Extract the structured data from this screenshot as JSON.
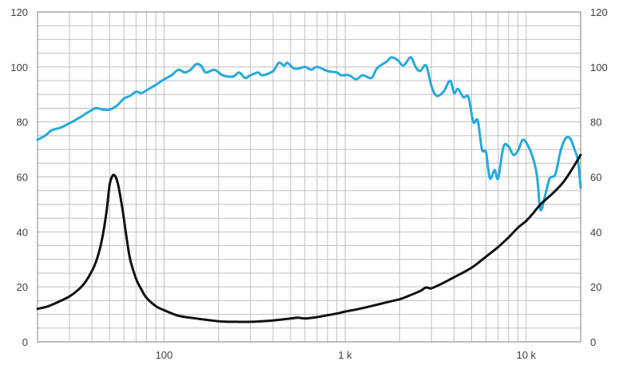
{
  "chart_data": {
    "type": "line",
    "x_scale": "log",
    "xlim": [
      20,
      20000
    ],
    "ylim": [
      0,
      120
    ],
    "grid": true,
    "legend": "none",
    "y_ticks": [
      0,
      20,
      40,
      60,
      80,
      100,
      120
    ],
    "y_tick_labels": [
      "0",
      "20",
      "40",
      "60",
      "80",
      "100",
      "120"
    ],
    "x_tick_labels": [
      {
        "value": 100,
        "label": "100"
      },
      {
        "value": 1000,
        "label": "1 k"
      },
      {
        "value": 10000,
        "label": "10 k"
      }
    ],
    "colors": {
      "frequency_response": "#27a9dc",
      "impedance": "#111111",
      "grid": "#bfbfbf",
      "axis": "#7f7f7f"
    },
    "series": [
      {
        "color": "#27a9dc",
        "points": [
          [
            20,
            73.5
          ],
          [
            22,
            75
          ],
          [
            24,
            77
          ],
          [
            27,
            78
          ],
          [
            30,
            79.5
          ],
          [
            34,
            81.5
          ],
          [
            38,
            83.5
          ],
          [
            42,
            85
          ],
          [
            46,
            84.5
          ],
          [
            50,
            84.5
          ],
          [
            55,
            86
          ],
          [
            60,
            88.5
          ],
          [
            65,
            89.5
          ],
          [
            70,
            91
          ],
          [
            75,
            90.5
          ],
          [
            80,
            91.5
          ],
          [
            90,
            93.5
          ],
          [
            100,
            95.5
          ],
          [
            110,
            97
          ],
          [
            120,
            99
          ],
          [
            130,
            98
          ],
          [
            140,
            99
          ],
          [
            150,
            101
          ],
          [
            160,
            100.5
          ],
          [
            170,
            98
          ],
          [
            190,
            99
          ],
          [
            210,
            97
          ],
          [
            240,
            96.5
          ],
          [
            260,
            98
          ],
          [
            280,
            96
          ],
          [
            300,
            97
          ],
          [
            330,
            98
          ],
          [
            350,
            97
          ],
          [
            400,
            98.5
          ],
          [
            430,
            101.5
          ],
          [
            460,
            100.5
          ],
          [
            480,
            101.5
          ],
          [
            520,
            99.5
          ],
          [
            560,
            99.5
          ],
          [
            600,
            100
          ],
          [
            650,
            99
          ],
          [
            700,
            100
          ],
          [
            800,
            98.5
          ],
          [
            900,
            98
          ],
          [
            950,
            97
          ],
          [
            1050,
            97
          ],
          [
            1150,
            95.5
          ],
          [
            1250,
            97
          ],
          [
            1400,
            96
          ],
          [
            1500,
            99.5
          ],
          [
            1700,
            102
          ],
          [
            1800,
            103.5
          ],
          [
            1950,
            102.5
          ],
          [
            2100,
            100.5
          ],
          [
            2300,
            103.5
          ],
          [
            2450,
            100
          ],
          [
            2600,
            98.5
          ],
          [
            2800,
            100.5
          ],
          [
            3000,
            93
          ],
          [
            3200,
            89.5
          ],
          [
            3500,
            91
          ],
          [
            3800,
            95
          ],
          [
            4000,
            90.5
          ],
          [
            4200,
            92
          ],
          [
            4500,
            89
          ],
          [
            4800,
            89
          ],
          [
            5100,
            80
          ],
          [
            5400,
            80.5
          ],
          [
            5700,
            70
          ],
          [
            6000,
            69
          ],
          [
            6300,
            59.5
          ],
          [
            6700,
            62.5
          ],
          [
            7000,
            59.5
          ],
          [
            7500,
            71
          ],
          [
            8000,
            71
          ],
          [
            8500,
            68
          ],
          [
            9000,
            69.5
          ],
          [
            9600,
            73.5
          ],
          [
            10300,
            71
          ],
          [
            11000,
            66
          ],
          [
            11500,
            60
          ],
          [
            12000,
            48
          ],
          [
            12800,
            54
          ],
          [
            13500,
            59.5
          ],
          [
            14500,
            61
          ],
          [
            15500,
            69.5
          ],
          [
            16500,
            74
          ],
          [
            17500,
            74
          ],
          [
            18500,
            70
          ],
          [
            19300,
            66
          ],
          [
            20000,
            56
          ]
        ]
      },
      {
        "color": "#111111",
        "points": [
          [
            20,
            12
          ],
          [
            23,
            13
          ],
          [
            27,
            15
          ],
          [
            30,
            16.5
          ],
          [
            33,
            18.5
          ],
          [
            36,
            21
          ],
          [
            39,
            24.5
          ],
          [
            42,
            29
          ],
          [
            45,
            36
          ],
          [
            48,
            47
          ],
          [
            50,
            57
          ],
          [
            52,
            60.5
          ],
          [
            54,
            60
          ],
          [
            56,
            56.5
          ],
          [
            59,
            48
          ],
          [
            62,
            38
          ],
          [
            65,
            30
          ],
          [
            70,
            23
          ],
          [
            75,
            19
          ],
          [
            80,
            16
          ],
          [
            90,
            13
          ],
          [
            100,
            11.5
          ],
          [
            120,
            9.5
          ],
          [
            150,
            8.5
          ],
          [
            200,
            7.5
          ],
          [
            250,
            7.3
          ],
          [
            300,
            7.3
          ],
          [
            400,
            7.8
          ],
          [
            500,
            8.5
          ],
          [
            550,
            8.8
          ],
          [
            600,
            8.5
          ],
          [
            700,
            9
          ],
          [
            800,
            9.7
          ],
          [
            900,
            10.3
          ],
          [
            1000,
            11
          ],
          [
            1200,
            12
          ],
          [
            1500,
            13.5
          ],
          [
            1800,
            14.8
          ],
          [
            2000,
            15.5
          ],
          [
            2200,
            16.5
          ],
          [
            2600,
            18.5
          ],
          [
            2800,
            19.8
          ],
          [
            3000,
            19.5
          ],
          [
            3500,
            21.5
          ],
          [
            4000,
            23.5
          ],
          [
            5000,
            27
          ],
          [
            6000,
            31
          ],
          [
            7000,
            34.5
          ],
          [
            8000,
            38
          ],
          [
            9000,
            41.5
          ],
          [
            10000,
            44
          ],
          [
            11000,
            47
          ],
          [
            12000,
            50
          ],
          [
            14000,
            54
          ],
          [
            16000,
            58
          ],
          [
            18000,
            63
          ],
          [
            20000,
            68
          ]
        ]
      }
    ]
  }
}
